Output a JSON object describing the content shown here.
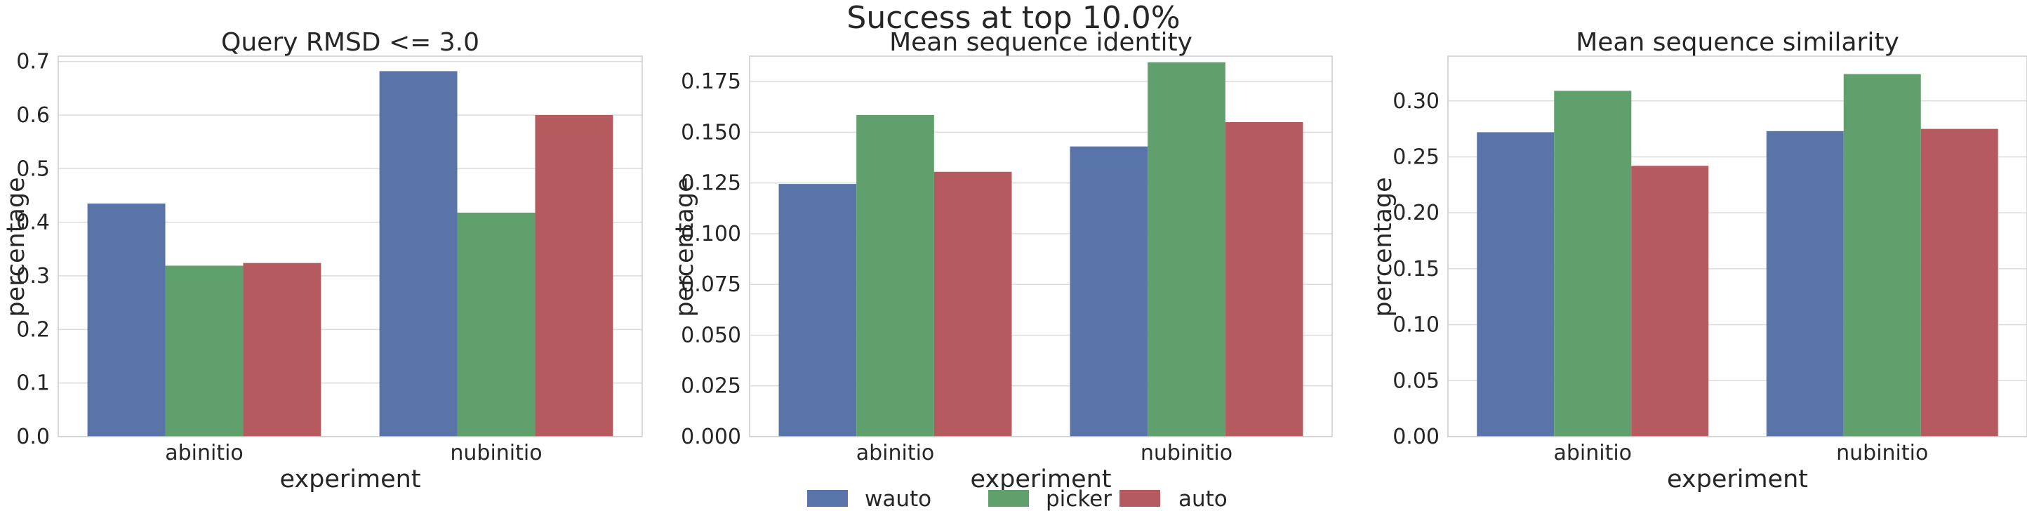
{
  "suptitle": "Success at top 10.0%",
  "legend": [
    {
      "label": "wauto",
      "color": "#5874a8"
    },
    {
      "label": "picker",
      "color": "#5fa06c"
    },
    {
      "label": "auto",
      "color": "#b55b5f"
    }
  ],
  "chart_data": [
    {
      "type": "bar",
      "title": "Query RMSD <= 3.0",
      "xlabel": "experiment",
      "ylabel": "percentage",
      "categories": [
        "abinitio",
        "nubinitio"
      ],
      "ylim": [
        0,
        0.71
      ],
      "yticks": [
        0.0,
        0.1,
        0.2,
        0.3,
        0.4,
        0.5,
        0.6,
        0.7
      ],
      "ytick_labels": [
        "0.0",
        "0.1",
        "0.2",
        "0.3",
        "0.4",
        "0.5",
        "0.6",
        "0.7"
      ],
      "series": [
        {
          "name": "wauto",
          "values": [
            0.435,
            0.682
          ]
        },
        {
          "name": "picker",
          "values": [
            0.319,
            0.418
          ]
        },
        {
          "name": "auto",
          "values": [
            0.324,
            0.6
          ]
        }
      ]
    },
    {
      "type": "bar",
      "title": "Mean sequence identity",
      "xlabel": "experiment",
      "ylabel": "percentage",
      "categories": [
        "abinitio",
        "nubinitio"
      ],
      "ylim": [
        0,
        0.1875
      ],
      "yticks": [
        0.0,
        0.025,
        0.05,
        0.075,
        0.1,
        0.125,
        0.15,
        0.175
      ],
      "ytick_labels": [
        "0.000",
        "0.025",
        "0.050",
        "0.075",
        "0.100",
        "0.125",
        "0.150",
        "0.175"
      ],
      "series": [
        {
          "name": "wauto",
          "values": [
            0.1245,
            0.143
          ]
        },
        {
          "name": "picker",
          "values": [
            0.1585,
            0.1845
          ]
        },
        {
          "name": "auto",
          "values": [
            0.1305,
            0.155
          ]
        }
      ]
    },
    {
      "type": "bar",
      "title": "Mean sequence similarity",
      "xlabel": "experiment",
      "ylabel": "percentage",
      "categories": [
        "abinitio",
        "nubinitio"
      ],
      "ylim": [
        0,
        0.34
      ],
      "yticks": [
        0.0,
        0.05,
        0.1,
        0.15,
        0.2,
        0.25,
        0.3
      ],
      "ytick_labels": [
        "0.00",
        "0.05",
        "0.10",
        "0.15",
        "0.20",
        "0.25",
        "0.30"
      ],
      "series": [
        {
          "name": "wauto",
          "values": [
            0.272,
            0.273
          ]
        },
        {
          "name": "picker",
          "values": [
            0.309,
            0.324
          ]
        },
        {
          "name": "auto",
          "values": [
            0.242,
            0.275
          ]
        }
      ]
    }
  ]
}
